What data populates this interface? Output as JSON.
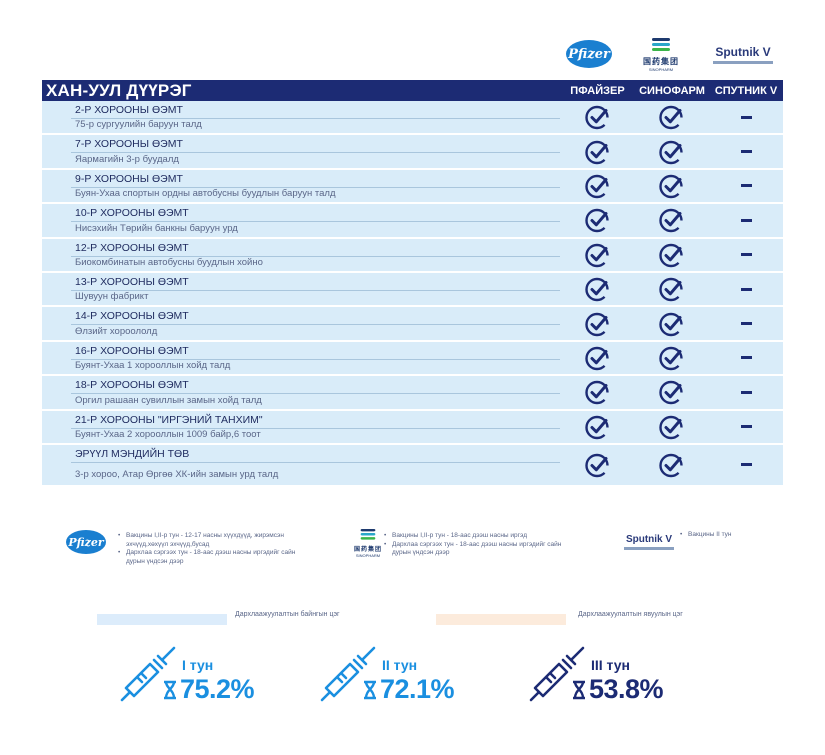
{
  "header": {
    "district": "ХАН-УУЛ ДҮҮРЭГ",
    "columns": [
      "ПФАЙЗЕР",
      "СИНОФАРМ",
      "СПУТНИК V"
    ]
  },
  "logos": {
    "pfizer": "Pfizer",
    "sinopharm_cn": "国药集团",
    "sinopharm_en": "SINOPHARM",
    "sputnik": "Sputnik V"
  },
  "rows": [
    {
      "title": "2-Р ХОРООНЫ ӨЭМТ",
      "address": "75-р сургуулийн баруун талд",
      "pfizer": true,
      "sinopharm": true,
      "sputnik": false
    },
    {
      "title": "7-Р ХОРООНЫ ӨЭМТ",
      "address": "Яармагийн 3-р буудалд",
      "pfizer": true,
      "sinopharm": true,
      "sputnik": false
    },
    {
      "title": "9-Р ХОРООНЫ ӨЭМТ",
      "address": "Буян-Ухаа спортын ордны автобусны буудлын баруун талд",
      "pfizer": true,
      "sinopharm": true,
      "sputnik": false
    },
    {
      "title": "10-Р ХОРООНЫ ӨЭМТ",
      "address": "Нисэхийн Төрийн банкны баруун урд",
      "pfizer": true,
      "sinopharm": true,
      "sputnik": false
    },
    {
      "title": "12-Р ХОРООНЫ ӨЭМТ",
      "address": "Биокомбинатын автобусны буудлын хойно",
      "pfizer": true,
      "sinopharm": true,
      "sputnik": false
    },
    {
      "title": "13-Р ХОРООНЫ ӨЭМТ",
      "address": "Шувуун фабрикт",
      "pfizer": true,
      "sinopharm": true,
      "sputnik": false
    },
    {
      "title": "14-Р ХОРООНЫ ӨЭМТ",
      "address": "Өлзийт хороололд",
      "pfizer": true,
      "sinopharm": true,
      "sputnik": false
    },
    {
      "title": "16-Р ХОРООНЫ ӨЭМТ",
      "address": "Буянт-Ухаа 1 хорооллын хойд талд",
      "pfizer": true,
      "sinopharm": true,
      "sputnik": false
    },
    {
      "title": "18-Р ХОРООНЫ ӨЭМТ",
      "address": "Оргил рашаан сувиллын замын хойд  талд",
      "pfizer": true,
      "sinopharm": true,
      "sputnik": false
    },
    {
      "title": "21-Р ХОРООНЫ \"ИРГЭНИЙ ТАНХИМ\"",
      "address": "Буянт-Ухаа 2 хорооллын 1009 байр,6 тоот",
      "pfizer": true,
      "sinopharm": true,
      "sputnik": false
    },
    {
      "title": "ЭРҮҮЛ МЭНДИЙН ТӨВ",
      "address": "3-р хороо, Атар Өргөө ХК-ийн замын урд талд",
      "pfizer": true,
      "sinopharm": true,
      "sputnik": false
    }
  ],
  "notes": {
    "pfizer": [
      "Вакцины I,II-р тун - 12-17 насны хүүхдүүд, жирэмсэн эхчүүд,хөхүүл эхчүүд,бусад",
      "Дархлаа сэргээх тун - 18-аас дээш насны иргэдийг сайн дурын үндсэн дээр"
    ],
    "sinopharm": [
      "Вакцины I,II-р тун - 18-аас дээш насны иргэд",
      "Дархлаа сэргээх тун - 18-аас дээш насны иргэдийг сайн дурын үндсэн дээр"
    ],
    "sputnik": [
      "Вакцины II тун"
    ]
  },
  "legend": {
    "permanent": "Дархлаажуулалтын байнгын цэг",
    "mobile": "Дархлаажуулалтын явуулын цэг",
    "permanent_color": "#dcecfb",
    "mobile_color": "#fcebdc"
  },
  "stats": [
    {
      "dose": "I тун",
      "percent": "75.2%",
      "color": "#1a8fe0"
    },
    {
      "dose": "II тун",
      "percent": "72.1%",
      "color": "#1a8fe0"
    },
    {
      "dose": "III тун",
      "percent": "53.8%",
      "color": "#1c2b74"
    }
  ]
}
